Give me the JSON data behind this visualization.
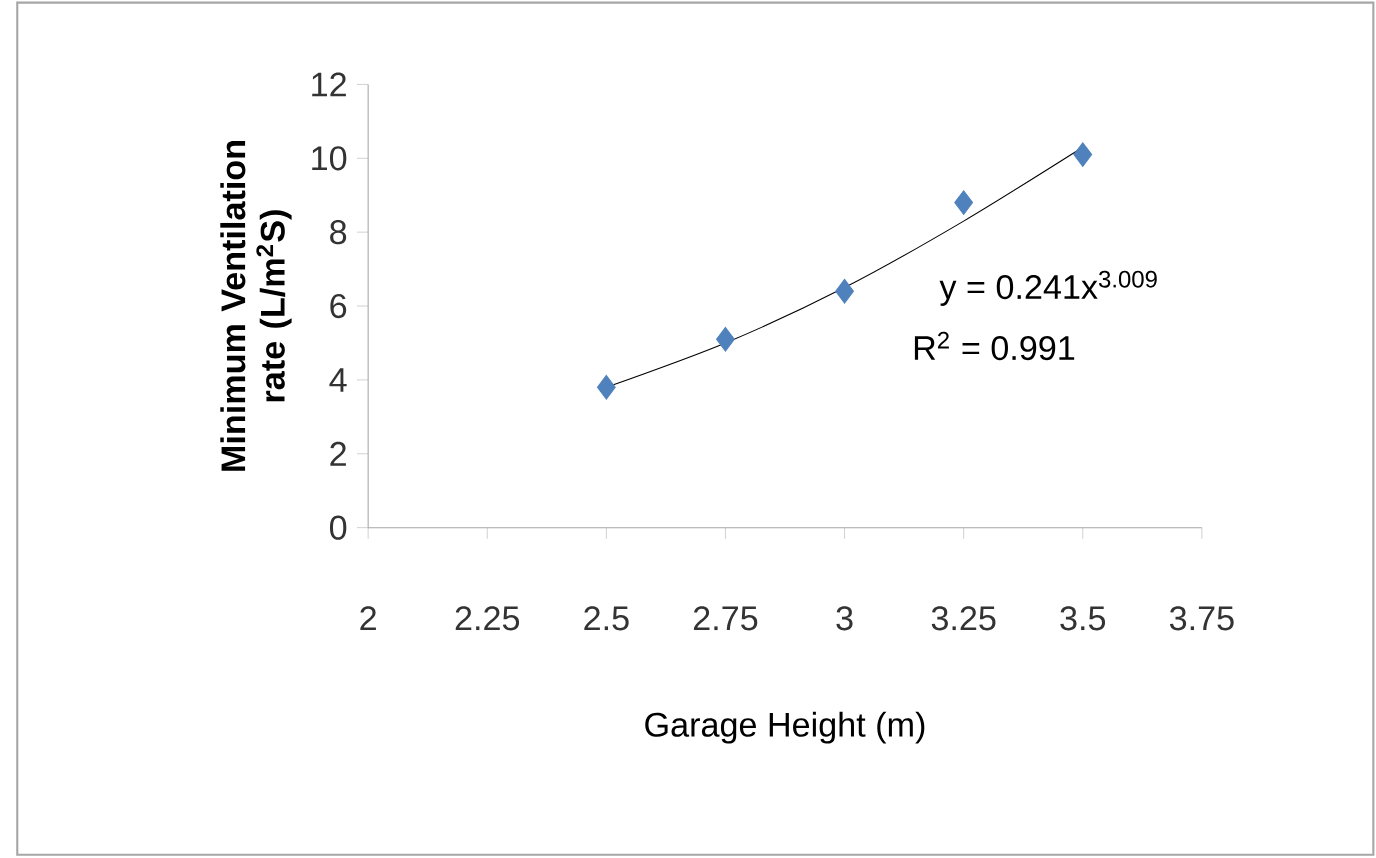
{
  "chart_data": {
    "type": "scatter",
    "xlabel": "Garage Height (m)",
    "ylabel": "Minimum Ventilation rate (L/m$^{2}$S)",
    "xlim": [
      2,
      3.75
    ],
    "xticks": [
      2,
      2.25,
      2.5,
      2.75,
      3,
      3.25,
      3.5,
      3.75
    ],
    "ylim": [
      0,
      12
    ],
    "yticks": [
      0,
      2,
      4,
      6,
      8,
      10,
      12
    ],
    "series": [
      {
        "color": "#4f81bd",
        "marker": "diamond",
        "x": [
          2.5,
          2.75,
          3,
          3.25,
          3.5
        ],
        "values": [
          3.8,
          5.1,
          6.4,
          8.8,
          10.1
        ]
      },
      {
        "type": "line",
        "color": "#000000",
        "marker": "none",
        "line_style": "solid",
        "x": [
          2.5,
          2.75,
          3,
          3.25,
          3.5
        ],
        "values": [
          3.8,
          5.0,
          6.5,
          8.3,
          10.3
        ]
      }
    ],
    "annotations": [
      "y = 0.241x$^{3.009}$",
      "R$^{2}$ = 0.991"
    ]
  }
}
